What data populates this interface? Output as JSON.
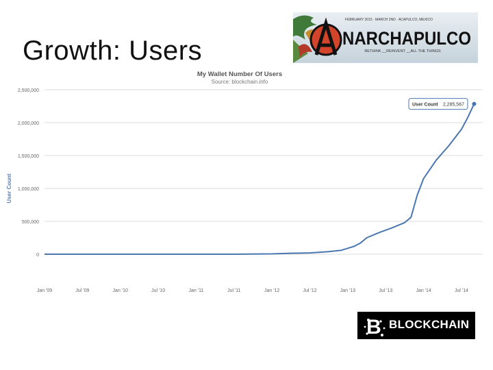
{
  "slide": {
    "title": "Growth: Users"
  },
  "banner": {
    "tagline_top": "FEBRUARY 2015 · MARCH 2ND · ACAPULCO, MEXICO",
    "wordmark": "NARCHAPULCO",
    "tagline_bottom": "RETHINK __REINVENT __ALL THE THINGS"
  },
  "logo": {
    "wordmark": "BLOCKCHAIN"
  },
  "colors": {
    "line": "#4a76b0",
    "tooltip_border": "#4a76b0",
    "grid": "#d8d8d8",
    "title": "#555555",
    "axis_label": "#5a7fb5"
  },
  "chart_data": {
    "type": "line",
    "title": "My Wallet Number Of Users",
    "subtitle": "Source: blockchain.info",
    "ylabel": "User Count",
    "xlabel": "",
    "ylim": [
      0,
      2500000
    ],
    "y_ticks": [
      0,
      500000,
      1000000,
      1500000,
      2000000,
      2500000
    ],
    "y_tick_labels": [
      "0",
      "500,000",
      "1,000,000",
      "1,500,000",
      "2,000,000",
      "2,500,000"
    ],
    "x_tick_labels": [
      "Jan '09",
      "Jul '09",
      "Jan '10",
      "Jul '10",
      "Jan '11",
      "Jul '11",
      "Jan '12",
      "Jul '12",
      "Jan '13",
      "Jul '13",
      "Jan '14",
      "Jul '14"
    ],
    "grid": true,
    "legend": "none",
    "series": [
      {
        "x": [
          "2009-01",
          "2009-07",
          "2010-01",
          "2010-07",
          "2011-01",
          "2011-07",
          "2012-01",
          "2012-04",
          "2012-07",
          "2012-10",
          "2012-12",
          "2013-02",
          "2013-03",
          "2013-04",
          "2013-06",
          "2013-08",
          "2013-10",
          "2013-11",
          "2013-12",
          "2014-01",
          "2014-03",
          "2014-05",
          "2014-07",
          "2014-08",
          "2014-09"
        ],
        "y": [
          0,
          0,
          0,
          0,
          0,
          0,
          5000,
          15000,
          20000,
          40000,
          60000,
          120000,
          170000,
          250000,
          330000,
          400000,
          480000,
          560000,
          900000,
          1150000,
          1430000,
          1650000,
          1900000,
          2080000,
          2285567
        ]
      }
    ],
    "annotations": [
      {
        "label": "User Count",
        "value": "2,285,567"
      }
    ]
  }
}
